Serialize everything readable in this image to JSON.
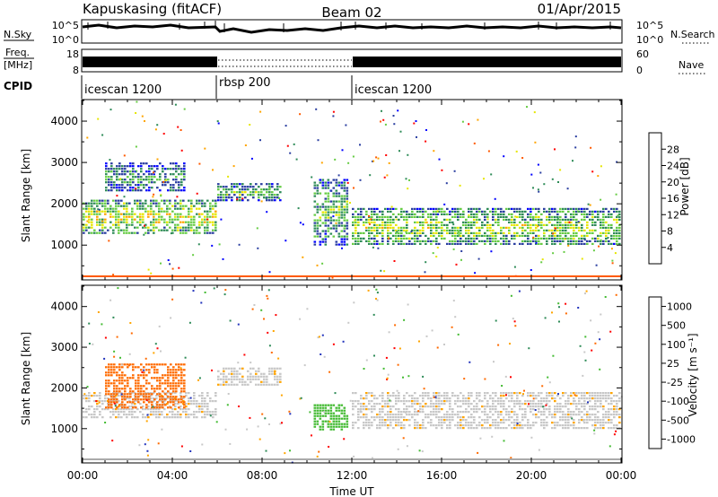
{
  "header": {
    "station": "Kapuskasing (fitACF)",
    "beam": "Beam 02",
    "date": "01/Apr/2015"
  },
  "aux_panels": {
    "nsky_label": "N.Sky",
    "nsky_ticks": [
      "10^5",
      "10^0"
    ],
    "nsearch_label": "N.Search",
    "nsearch_ticks": [
      "10^5",
      "10^0"
    ],
    "freq_label": "Freq.",
    "freq_unit": "[MHz]",
    "freq_ticks": [
      "18",
      "8"
    ],
    "nave_label": "Nave",
    "nave_ticks": [
      "60",
      "0"
    ],
    "cpid_label": "CPID",
    "cpid_segments": [
      {
        "label": "icescan 1200",
        "start_hour": 0,
        "end_hour": 6
      },
      {
        "label": "rbsp 200",
        "start_hour": 6,
        "end_hour": 12
      },
      {
        "label": "icescan 1200",
        "start_hour": 12,
        "end_hour": 24
      }
    ]
  },
  "chart_data": [
    {
      "type": "heatmap",
      "parameter": "power",
      "ylabel": "Slant Range [km]",
      "xlabel": "Time UT",
      "x_ticks": [
        "00:00",
        "04:00",
        "08:00",
        "12:00",
        "16:00",
        "20:00",
        "00:00"
      ],
      "xlim_hours": [
        0,
        24
      ],
      "y_ticks": [
        1000,
        2000,
        3000,
        4000
      ],
      "ylim": [
        180,
        4500
      ],
      "colorbar": {
        "label": "Power [dB]",
        "ticks": [
          "28",
          "24",
          "20",
          "16",
          "12",
          "8",
          "4"
        ],
        "range": [
          0,
          30
        ],
        "colors": [
          "#0000ff",
          "#2a3ea0",
          "#2e8b57",
          "#66cc44",
          "#e6e600",
          "#ffa500",
          "#ff5a00",
          "#ff0000"
        ]
      },
      "echo_bands": [
        {
          "start_hour": 0.0,
          "end_hour": 5.9,
          "low_km": 1300,
          "high_km": 2100,
          "power_db": 14
        },
        {
          "start_hour": 1.0,
          "end_hour": 4.5,
          "low_km": 2300,
          "high_km": 3000,
          "power_db": 8
        },
        {
          "start_hour": 6.0,
          "end_hour": 8.8,
          "low_km": 2100,
          "high_km": 2500,
          "power_db": 10
        },
        {
          "start_hour": 10.3,
          "end_hour": 11.8,
          "low_km": 1000,
          "high_km": 2600,
          "power_db": 10
        },
        {
          "start_hour": 12.0,
          "end_hour": 24.0,
          "low_km": 1000,
          "high_km": 1900,
          "power_db": 12
        }
      ]
    },
    {
      "type": "heatmap",
      "parameter": "velocity",
      "ylabel": "Slant Range [km]",
      "xlabel": "Time UT",
      "x_ticks": [
        "00:00",
        "04:00",
        "08:00",
        "12:00",
        "16:00",
        "20:00",
        "00:00"
      ],
      "xlim_hours": [
        0,
        24
      ],
      "y_ticks": [
        1000,
        2000,
        3000,
        4000
      ],
      "ylim": [
        180,
        4500
      ],
      "colorbar": {
        "label": "Velocity [m s⁻¹]",
        "ticks": [
          "1000",
          "500",
          "100",
          "25",
          "-25",
          "-100",
          "-500",
          "-1000"
        ],
        "colors": [
          "#2233bb",
          "#2e8b57",
          "#44bb33",
          "#c8c8c8",
          "#c8c8c8",
          "#ffa500",
          "#ff6a00",
          "#ff0000"
        ]
      },
      "echo_bands": [
        {
          "start_hour": 0.0,
          "end_hour": 5.9,
          "low_km": 1300,
          "high_km": 1900,
          "velocity_ms": 0
        },
        {
          "start_hour": 1.0,
          "end_hour": 4.5,
          "low_km": 1500,
          "high_km": 2600,
          "velocity_ms": -150
        },
        {
          "start_hour": 6.0,
          "end_hour": 8.8,
          "low_km": 2100,
          "high_km": 2500,
          "velocity_ms": 0
        },
        {
          "start_hour": 10.3,
          "end_hour": 11.8,
          "low_km": 1000,
          "high_km": 1600,
          "velocity_ms": 150
        },
        {
          "start_hour": 12.0,
          "end_hour": 24.0,
          "low_km": 1000,
          "high_km": 1900,
          "velocity_ms": 0
        }
      ]
    }
  ]
}
